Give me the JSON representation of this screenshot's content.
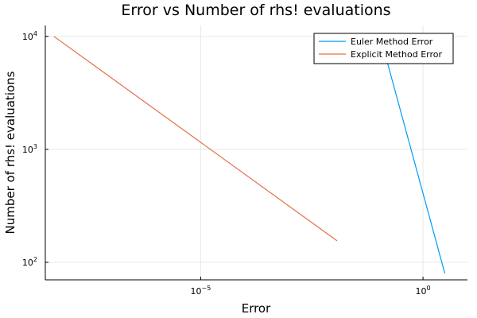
{
  "chart_data": {
    "type": "line",
    "title": "Error vs Number of rhs! evaluations",
    "xlabel": "Error",
    "ylabel": "Number of rhs! evaluations",
    "xscale": "log10",
    "yscale": "log10",
    "xlim": [
      3.2e-09,
      10
    ],
    "ylim": [
      70,
      12500
    ],
    "xticks": [
      {
        "value": 1e-05,
        "base": "10",
        "exp": "−5"
      },
      {
        "value": 1,
        "base": "10",
        "exp": "0"
      }
    ],
    "yticks": [
      {
        "value": 100,
        "base": "10",
        "exp": "2"
      },
      {
        "value": 1000,
        "base": "10",
        "exp": "3"
      },
      {
        "value": 10000,
        "base": "10",
        "exp": "4"
      }
    ],
    "grid": true,
    "legend_position": "top-right",
    "series": [
      {
        "name": "Euler Method Error",
        "color": "#009AFA",
        "x": [
          0.13,
          3.09
        ],
        "y": [
          7800,
          80
        ]
      },
      {
        "name": "Explicit Method Error",
        "color": "#E26F46",
        "x": [
          5e-09,
          0.0117
        ],
        "y": [
          10000,
          155
        ]
      }
    ]
  }
}
